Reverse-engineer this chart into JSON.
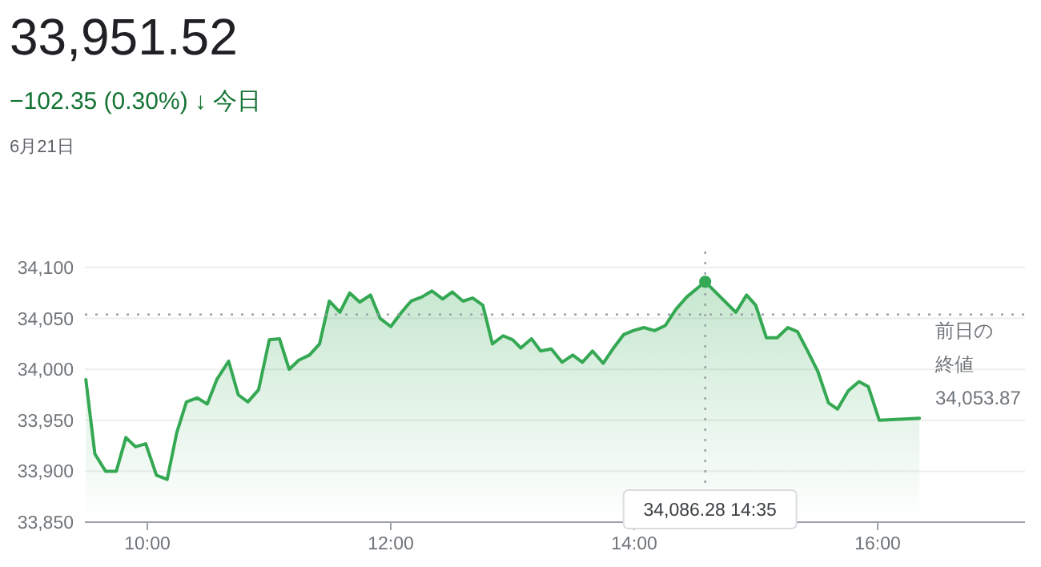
{
  "chart_data": {
    "type": "area",
    "title": "33,951.52",
    "subtitle": "−102.35 (0.30%) ↓ 今日",
    "annotations": [
      "6月21日",
      "34,086.28 14:35"
    ],
    "x": [
      9.495,
      9.569,
      9.657,
      9.745,
      9.824,
      9.903,
      9.987,
      10.075,
      10.163,
      10.242,
      10.321,
      10.409,
      10.492,
      10.571,
      10.668,
      10.747,
      10.826,
      10.914,
      11.002,
      11.086,
      11.165,
      11.244,
      11.332,
      11.415,
      11.495,
      11.582,
      11.662,
      11.745,
      11.833,
      11.912,
      12.0,
      12.088,
      12.167,
      12.255,
      12.338,
      12.426,
      12.505,
      12.593,
      12.673,
      12.756,
      12.835,
      12.923,
      13.002,
      13.068,
      13.156,
      13.231,
      13.319,
      13.407,
      13.495,
      13.574,
      13.657,
      13.745,
      13.824,
      13.912,
      13.991,
      14.079,
      14.167,
      14.255,
      14.343,
      14.431,
      14.583,
      14.835,
      14.923,
      14.998,
      15.086,
      15.174,
      15.262,
      15.341,
      15.429,
      15.508,
      15.596,
      15.67,
      15.758,
      15.846,
      15.923,
      16.013,
      16.343
    ],
    "series": [
      {
        "color": "#34a853",
        "values": [
          33990,
          33917,
          33900,
          33900,
          33933,
          33924,
          33927,
          33896,
          33892,
          33938,
          33968,
          33972,
          33966,
          33990,
          34008,
          33975,
          33968,
          33980,
          34029,
          34030,
          34000,
          34009,
          34014,
          34025,
          34067,
          34056,
          34075,
          34066,
          34073,
          34050,
          34042,
          34056,
          34067,
          34071,
          34077,
          34069,
          34076,
          34067,
          34070,
          34063,
          34025,
          34033,
          34029,
          34021,
          34030,
          34018,
          34020,
          34007,
          34014,
          34007,
          34018,
          34006,
          34020,
          34034,
          34038,
          34041,
          34038,
          34043,
          34059,
          34071,
          34086,
          34056,
          34073,
          34063,
          34031,
          34031,
          34041,
          34037,
          34017,
          33998,
          33967,
          33961,
          33979,
          33988,
          33983,
          33950,
          33952
        ]
      }
    ],
    "xlim": [
      9.487,
      17.21
    ],
    "xticks": [
      {
        "value": 10,
        "label": "10:00"
      },
      {
        "value": 12,
        "label": "12:00"
      },
      {
        "value": 14,
        "label": "14:00"
      },
      {
        "value": 16,
        "label": "16:00"
      }
    ],
    "ylim": [
      33850,
      34100
    ],
    "yticks": [
      {
        "value": 33850,
        "label": "33,850"
      },
      {
        "value": 33900,
        "label": "33,900"
      },
      {
        "value": 33950,
        "label": "33,950"
      },
      {
        "value": 34000,
        "label": "34,000"
      },
      {
        "value": 34050,
        "label": "34,050"
      },
      {
        "value": 34100,
        "label": "34,100"
      }
    ],
    "ref_lines": [
      {
        "axis": "y",
        "value": 34053.87,
        "label": "前日の終値34,053.87",
        "color": "#9aa0a6",
        "line_style": "dotted"
      },
      {
        "axis": "x",
        "value": 14.583,
        "color": "#9aa0a6",
        "line_style": "dotted"
      }
    ],
    "grid": "y"
  }
}
